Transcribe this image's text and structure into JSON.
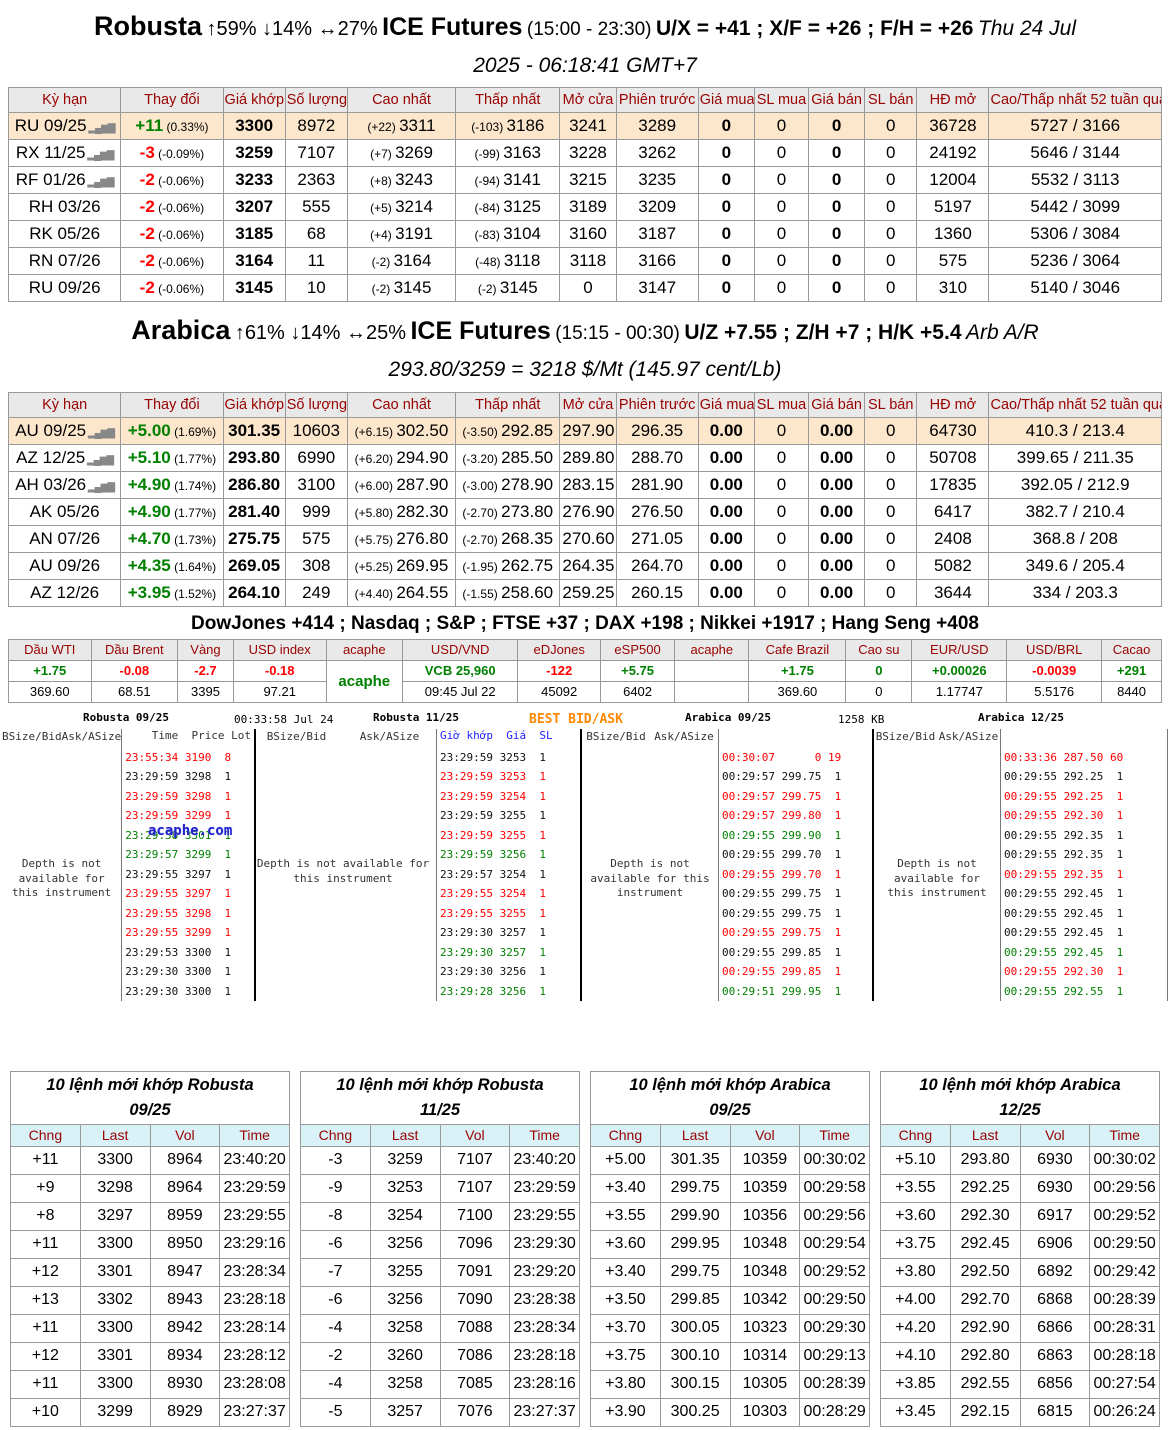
{
  "page": {
    "robusta_heading": {
      "name": "Robusta",
      "stats": "↑59% ↓14% ↔27%",
      "exchange": "ICE Futures",
      "hours": "(15:00 - 23:30)",
      "spreads": "U/X = +41 ; X/F = +26 ; F/H = +26",
      "date": "Thu 24 Jul",
      "line2": "2025 - 06:18:41 GMT+7"
    },
    "arabica_heading": {
      "name": "Arabica",
      "stats": "↑61% ↓14% ↔25%",
      "exchange": "ICE Futures",
      "hours": "(15:15 - 00:30)",
      "spreads": "U/Z +7.55 ; Z/H +7 ; H/K +5.4",
      "date": "Arb A/R",
      "line2": "293.80/3259 = 3218 $/Mt (145.97 cent/Lb)"
    },
    "indices_line": "DowJones +414 ; Nasdaq ; S&P ; FTSE +37 ; DAX +198 ; Nikkei +1917 ; Hang Seng +408"
  },
  "futures": {
    "columns": [
      "Kỳ hạn",
      "Thay đổi",
      "Giá khớp",
      "Số lượng",
      "Cao nhất",
      "Thấp nhất",
      "Mở cửa",
      "Phiên trước",
      "Giá mua",
      "SL mua",
      "Giá bán",
      "SL bán",
      "HĐ mở",
      "Cao/Thấp nhất 52 tuần qua"
    ],
    "robusta_rows": [
      {
        "c": "RU 09/25",
        "icon": true,
        "chg": "+11",
        "pct": "(0.33%)",
        "dir": "up",
        "last": "3300",
        "vol": "8972",
        "hc": "(+22)",
        "hi": "3311",
        "lc": "(-103)",
        "lo": "3186",
        "open": "3241",
        "prev": "3289",
        "bid": "0",
        "bsz": "0",
        "ask": "0",
        "asz": "0",
        "oi": "36728",
        "range": "5727 / 3166",
        "hl": true
      },
      {
        "c": "RX 11/25",
        "icon": true,
        "chg": "-3",
        "pct": "(-0.09%)",
        "dir": "down",
        "last": "3259",
        "vol": "7107",
        "hc": "(+7)",
        "hi": "3269",
        "lc": "(-99)",
        "lo": "3163",
        "open": "3228",
        "prev": "3262",
        "bid": "0",
        "bsz": "0",
        "ask": "0",
        "asz": "0",
        "oi": "24192",
        "range": "5646 / 3144",
        "hl": false
      },
      {
        "c": "RF 01/26",
        "icon": true,
        "chg": "-2",
        "pct": "(-0.06%)",
        "dir": "down",
        "last": "3233",
        "vol": "2363",
        "hc": "(+8)",
        "hi": "3243",
        "lc": "(-94)",
        "lo": "3141",
        "open": "3215",
        "prev": "3235",
        "bid": "0",
        "bsz": "0",
        "ask": "0",
        "asz": "0",
        "oi": "12004",
        "range": "5532 / 3113",
        "hl": false
      },
      {
        "c": "RH 03/26",
        "icon": false,
        "chg": "-2",
        "pct": "(-0.06%)",
        "dir": "down",
        "last": "3207",
        "vol": "555",
        "hc": "(+5)",
        "hi": "3214",
        "lc": "(-84)",
        "lo": "3125",
        "open": "3189",
        "prev": "3209",
        "bid": "0",
        "bsz": "0",
        "ask": "0",
        "asz": "0",
        "oi": "5197",
        "range": "5442 / 3099",
        "hl": false
      },
      {
        "c": "RK 05/26",
        "icon": false,
        "chg": "-2",
        "pct": "(-0.06%)",
        "dir": "down",
        "last": "3185",
        "vol": "68",
        "hc": "(+4)",
        "hi": "3191",
        "lc": "(-83)",
        "lo": "3104",
        "open": "3160",
        "prev": "3187",
        "bid": "0",
        "bsz": "0",
        "ask": "0",
        "asz": "0",
        "oi": "1360",
        "range": "5306 / 3084",
        "hl": false
      },
      {
        "c": "RN 07/26",
        "icon": false,
        "chg": "-2",
        "pct": "(-0.06%)",
        "dir": "down",
        "last": "3164",
        "vol": "11",
        "hc": "(-2)",
        "hi": "3164",
        "lc": "(-48)",
        "lo": "3118",
        "open": "3118",
        "prev": "3166",
        "bid": "0",
        "bsz": "0",
        "ask": "0",
        "asz": "0",
        "oi": "575",
        "range": "5236 / 3064",
        "hl": false
      },
      {
        "c": "RU 09/26",
        "icon": false,
        "chg": "-2",
        "pct": "(-0.06%)",
        "dir": "down",
        "last": "3145",
        "vol": "10",
        "hc": "(-2)",
        "hi": "3145",
        "lc": "(-2)",
        "lo": "3145",
        "open": "0",
        "prev": "3147",
        "bid": "0",
        "bsz": "0",
        "ask": "0",
        "asz": "0",
        "oi": "310",
        "range": "5140 / 3046",
        "hl": false
      }
    ],
    "arabica_rows": [
      {
        "c": "AU 09/25",
        "icon": true,
        "chg": "+5.00",
        "pct": "(1.69%)",
        "dir": "up",
        "last": "301.35",
        "vol": "10603",
        "hc": "(+6.15)",
        "hi": "302.50",
        "lc": "(-3.50)",
        "lo": "292.85",
        "open": "297.90",
        "prev": "296.35",
        "bid": "0.00",
        "bsz": "0",
        "ask": "0.00",
        "asz": "0",
        "oi": "64730",
        "range": "410.3 / 213.4",
        "hl": true
      },
      {
        "c": "AZ 12/25",
        "icon": true,
        "chg": "+5.10",
        "pct": "(1.77%)",
        "dir": "up",
        "last": "293.80",
        "vol": "6990",
        "hc": "(+6.20)",
        "hi": "294.90",
        "lc": "(-3.20)",
        "lo": "285.50",
        "open": "289.80",
        "prev": "288.70",
        "bid": "0.00",
        "bsz": "0",
        "ask": "0.00",
        "asz": "0",
        "oi": "50708",
        "range": "399.65 / 211.35",
        "hl": false
      },
      {
        "c": "AH 03/26",
        "icon": true,
        "chg": "+4.90",
        "pct": "(1.74%)",
        "dir": "up",
        "last": "286.80",
        "vol": "3100",
        "hc": "(+6.00)",
        "hi": "287.90",
        "lc": "(-3.00)",
        "lo": "278.90",
        "open": "283.15",
        "prev": "281.90",
        "bid": "0.00",
        "bsz": "0",
        "ask": "0.00",
        "asz": "0",
        "oi": "17835",
        "range": "392.05 / 212.9",
        "hl": false
      },
      {
        "c": "AK 05/26",
        "icon": false,
        "chg": "+4.90",
        "pct": "(1.77%)",
        "dir": "up",
        "last": "281.40",
        "vol": "999",
        "hc": "(+5.80)",
        "hi": "282.30",
        "lc": "(-2.70)",
        "lo": "273.80",
        "open": "276.90",
        "prev": "276.50",
        "bid": "0.00",
        "bsz": "0",
        "ask": "0.00",
        "asz": "0",
        "oi": "6417",
        "range": "382.7 / 210.4",
        "hl": false
      },
      {
        "c": "AN 07/26",
        "icon": false,
        "chg": "+4.70",
        "pct": "(1.73%)",
        "dir": "up",
        "last": "275.75",
        "vol": "575",
        "hc": "(+5.75)",
        "hi": "276.80",
        "lc": "(-2.70)",
        "lo": "268.35",
        "open": "270.60",
        "prev": "271.05",
        "bid": "0.00",
        "bsz": "0",
        "ask": "0.00",
        "asz": "0",
        "oi": "2408",
        "range": "368.8 / 208",
        "hl": false
      },
      {
        "c": "AU 09/26",
        "icon": false,
        "chg": "+4.35",
        "pct": "(1.64%)",
        "dir": "up",
        "last": "269.05",
        "vol": "308",
        "hc": "(+5.25)",
        "hi": "269.95",
        "lc": "(-1.95)",
        "lo": "262.75",
        "open": "264.35",
        "prev": "264.70",
        "bid": "0.00",
        "bsz": "0",
        "ask": "0.00",
        "asz": "0",
        "oi": "5082",
        "range": "349.6 / 205.4",
        "hl": false
      },
      {
        "c": "AZ 12/26",
        "icon": false,
        "chg": "+3.95",
        "pct": "(1.52%)",
        "dir": "up",
        "last": "264.10",
        "vol": "249",
        "hc": "(+4.40)",
        "hi": "264.55",
        "lc": "(-1.55)",
        "lo": "258.60",
        "open": "259.25",
        "prev": "260.15",
        "bid": "0.00",
        "bsz": "0",
        "ask": "0.00",
        "asz": "0",
        "oi": "3644",
        "range": "334 / 203.3",
        "hl": false
      }
    ]
  },
  "market": {
    "columns": [
      "Dầu WTI",
      "Dầu Brent",
      "Vàng",
      "USD index",
      "acaphe",
      "USD/VND",
      "eDJones",
      "eSP500",
      "acaphe",
      "Cafe Brazil",
      "Cao su",
      "EUR/USD",
      "USD/BRL",
      "Cacao"
    ],
    "cells": [
      {
        "chg": "+1.75",
        "val": "369.60",
        "c": "cg"
      },
      {
        "chg": "-0.08",
        "val": "68.51",
        "c": "cr"
      },
      {
        "chg": "-2.7",
        "val": "3395",
        "c": "cr"
      },
      {
        "chg": "-0.18",
        "val": "97.21",
        "c": "cr"
      },
      {
        "brand": "acaphe"
      },
      {
        "chg": "VCB 25,960",
        "val": "09:45 Jul 22",
        "c": "cg"
      },
      {
        "chg": "-122",
        "val": "45092",
        "c": "cr"
      },
      {
        "chg": "+5.75",
        "val": "6402",
        "c": "cg"
      },
      {
        "chg": "",
        "val": "",
        "c": "ck"
      },
      {
        "chg": "+1.75",
        "val": "369.60",
        "c": "cg"
      },
      {
        "chg": "0",
        "val": "0",
        "c": "cg"
      },
      {
        "chg": "+0.00026",
        "val": "1.17747",
        "c": "cg"
      },
      {
        "chg": "-0.0039",
        "val": "5.5176",
        "c": "cr"
      },
      {
        "chg": "+291",
        "val": "8440",
        "c": "cg"
      }
    ]
  },
  "depth": {
    "best_label": "BEST BID/ASK",
    "watermark": "acaphe.com",
    "no_depth": "Depth is not available for this instrument",
    "panels": [
      {
        "title": "Robusta 09/25",
        "meta": "00:33:58 Jul 24",
        "cols": [
          "BSize/Bid",
          "Ask/ASize"
        ],
        "thdr": "    Time  Price Lot",
        "thdr_class": "",
        "trades": [
          [
            "23:55:34 3190  8",
            "cr"
          ],
          [
            "23:29:59 3298  1",
            "ck"
          ],
          [
            "23:29:59 3298  1",
            "cr"
          ],
          [
            "23:29:59 3299  1",
            "cr"
          ],
          [
            "23:29:58 3301  1",
            "cg"
          ],
          [
            "23:29:57 3299  1",
            "cg"
          ],
          [
            "23:29:55 3297  1",
            "ck"
          ],
          [
            "23:29:55 3297  1",
            "cr"
          ],
          [
            "23:29:55 3298  1",
            "cr"
          ],
          [
            "23:29:55 3299  1",
            "cr"
          ],
          [
            "23:29:53 3300  1",
            "ck"
          ],
          [
            "23:29:30 3300  1",
            "ck"
          ],
          [
            "23:29:30 3300  1",
            "ck"
          ]
        ]
      },
      {
        "title": "Robusta 11/25",
        "meta": "",
        "cols": [
          "BSize/Bid",
          "Ask/ASize"
        ],
        "thdr": "Giờ khớp  Giá  SL",
        "thdr_class": "blue",
        "trades": [
          [
            "23:29:59 3253  1",
            "ck"
          ],
          [
            "23:29:59 3253  1",
            "cr"
          ],
          [
            "23:29:59 3254  1",
            "cr"
          ],
          [
            "23:29:59 3255  1",
            "ck"
          ],
          [
            "23:29:59 3255  1",
            "cr"
          ],
          [
            "23:29:59 3256  1",
            "cg"
          ],
          [
            "23:29:57 3254  1",
            "ck"
          ],
          [
            "23:29:55 3254  1",
            "cr"
          ],
          [
            "23:29:55 3255  1",
            "cr"
          ],
          [
            "23:29:30 3257  1",
            "ck"
          ],
          [
            "23:29:30 3257  1",
            "cg"
          ],
          [
            "23:29:30 3256  1",
            "ck"
          ],
          [
            "23:29:28 3256  1",
            "cg"
          ]
        ]
      },
      {
        "title": "Arabica 09/25",
        "meta": "1258 KB",
        "cols": [
          "BSize/Bid",
          "Ask/ASize"
        ],
        "thdr": " ",
        "thdr_class": "",
        "trades": [
          [
            "00:30:07      0 19",
            "cr"
          ],
          [
            "00:29:57 299.75  1",
            "ck"
          ],
          [
            "00:29:57 299.75  1",
            "cr"
          ],
          [
            "00:29:57 299.80  1",
            "cr"
          ],
          [
            "00:29:55 299.90  1",
            "cg"
          ],
          [
            "00:29:55 299.70  1",
            "ck"
          ],
          [
            "00:29:55 299.70  1",
            "cr"
          ],
          [
            "00:29:55 299.75  1",
            "ck"
          ],
          [
            "00:29:55 299.75  1",
            "ck"
          ],
          [
            "00:29:55 299.75  1",
            "cr"
          ],
          [
            "00:29:55 299.85  1",
            "ck"
          ],
          [
            "00:29:55 299.85  1",
            "cr"
          ],
          [
            "00:29:51 299.95  1",
            "cg"
          ]
        ]
      },
      {
        "title": "Arabica 12/25",
        "meta": "",
        "cols": [
          "BSize/Bid",
          "Ask/ASize"
        ],
        "thdr": " ",
        "thdr_class": "",
        "trades": [
          [
            "00:33:36 287.50 60",
            "cr"
          ],
          [
            "00:29:55 292.25  1",
            "ck"
          ],
          [
            "00:29:55 292.25  1",
            "cr"
          ],
          [
            "00:29:55 292.30  1",
            "cr"
          ],
          [
            "00:29:55 292.35  1",
            "ck"
          ],
          [
            "00:29:55 292.35  1",
            "ck"
          ],
          [
            "00:29:55 292.35  1",
            "cr"
          ],
          [
            "00:29:55 292.45  1",
            "ck"
          ],
          [
            "00:29:55 292.45  1",
            "ck"
          ],
          [
            "00:29:55 292.45  1",
            "ck"
          ],
          [
            "00:29:55 292.45  1",
            "cg"
          ],
          [
            "00:29:55 292.30  1",
            "cr"
          ],
          [
            "00:29:55 292.55  1",
            "cg"
          ]
        ]
      }
    ]
  },
  "recent": {
    "columns": [
      "Chng",
      "Last",
      "Vol",
      "Time"
    ],
    "tables": [
      {
        "title1": "10 lệnh mới khớp Robusta",
        "title2": "09/25",
        "rows": [
          [
            "+11",
            "3300",
            "8964",
            "23:40:20"
          ],
          [
            "+9",
            "3298",
            "8964",
            "23:29:59"
          ],
          [
            "+8",
            "3297",
            "8959",
            "23:29:55"
          ],
          [
            "+11",
            "3300",
            "8950",
            "23:29:16"
          ],
          [
            "+12",
            "3301",
            "8947",
            "23:28:34"
          ],
          [
            "+13",
            "3302",
            "8943",
            "23:28:18"
          ],
          [
            "+11",
            "3300",
            "8942",
            "23:28:14"
          ],
          [
            "+12",
            "3301",
            "8934",
            "23:28:12"
          ],
          [
            "+11",
            "3300",
            "8930",
            "23:28:08"
          ],
          [
            "+10",
            "3299",
            "8929",
            "23:27:37"
          ]
        ]
      },
      {
        "title1": "10 lệnh mới khớp Robusta",
        "title2": "11/25",
        "rows": [
          [
            "-3",
            "3259",
            "7107",
            "23:40:20"
          ],
          [
            "-9",
            "3253",
            "7107",
            "23:29:59"
          ],
          [
            "-8",
            "3254",
            "7100",
            "23:29:55"
          ],
          [
            "-6",
            "3256",
            "7096",
            "23:29:30"
          ],
          [
            "-7",
            "3255",
            "7091",
            "23:29:20"
          ],
          [
            "-6",
            "3256",
            "7090",
            "23:28:38"
          ],
          [
            "-4",
            "3258",
            "7088",
            "23:28:34"
          ],
          [
            "-2",
            "3260",
            "7086",
            "23:28:18"
          ],
          [
            "-4",
            "3258",
            "7085",
            "23:28:16"
          ],
          [
            "-5",
            "3257",
            "7076",
            "23:27:37"
          ]
        ]
      },
      {
        "title1": "10 lệnh mới khớp Arabica",
        "title2": "09/25",
        "rows": [
          [
            "+5.00",
            "301.35",
            "10359",
            "00:30:02"
          ],
          [
            "+3.40",
            "299.75",
            "10359",
            "00:29:58"
          ],
          [
            "+3.55",
            "299.90",
            "10356",
            "00:29:56"
          ],
          [
            "+3.60",
            "299.95",
            "10348",
            "00:29:54"
          ],
          [
            "+3.40",
            "299.75",
            "10348",
            "00:29:52"
          ],
          [
            "+3.50",
            "299.85",
            "10342",
            "00:29:50"
          ],
          [
            "+3.70",
            "300.05",
            "10323",
            "00:29:30"
          ],
          [
            "+3.75",
            "300.10",
            "10314",
            "00:29:13"
          ],
          [
            "+3.80",
            "300.15",
            "10305",
            "00:28:39"
          ],
          [
            "+3.90",
            "300.25",
            "10303",
            "00:28:29"
          ]
        ]
      },
      {
        "title1": "10 lệnh mới khớp Arabica",
        "title2": "12/25",
        "rows": [
          [
            "+5.10",
            "293.80",
            "6930",
            "00:30:02"
          ],
          [
            "+3.55",
            "292.25",
            "6930",
            "00:29:56"
          ],
          [
            "+3.60",
            "292.30",
            "6917",
            "00:29:52"
          ],
          [
            "+3.75",
            "292.45",
            "6906",
            "00:29:50"
          ],
          [
            "+3.80",
            "292.50",
            "6892",
            "00:29:42"
          ],
          [
            "+4.00",
            "292.70",
            "6868",
            "00:28:39"
          ],
          [
            "+4.20",
            "292.90",
            "6866",
            "00:28:31"
          ],
          [
            "+4.10",
            "292.80",
            "6863",
            "00:28:18"
          ],
          [
            "+3.85",
            "292.55",
            "6856",
            "00:27:54"
          ],
          [
            "+3.45",
            "292.15",
            "6815",
            "00:26:24"
          ]
        ]
      }
    ]
  }
}
